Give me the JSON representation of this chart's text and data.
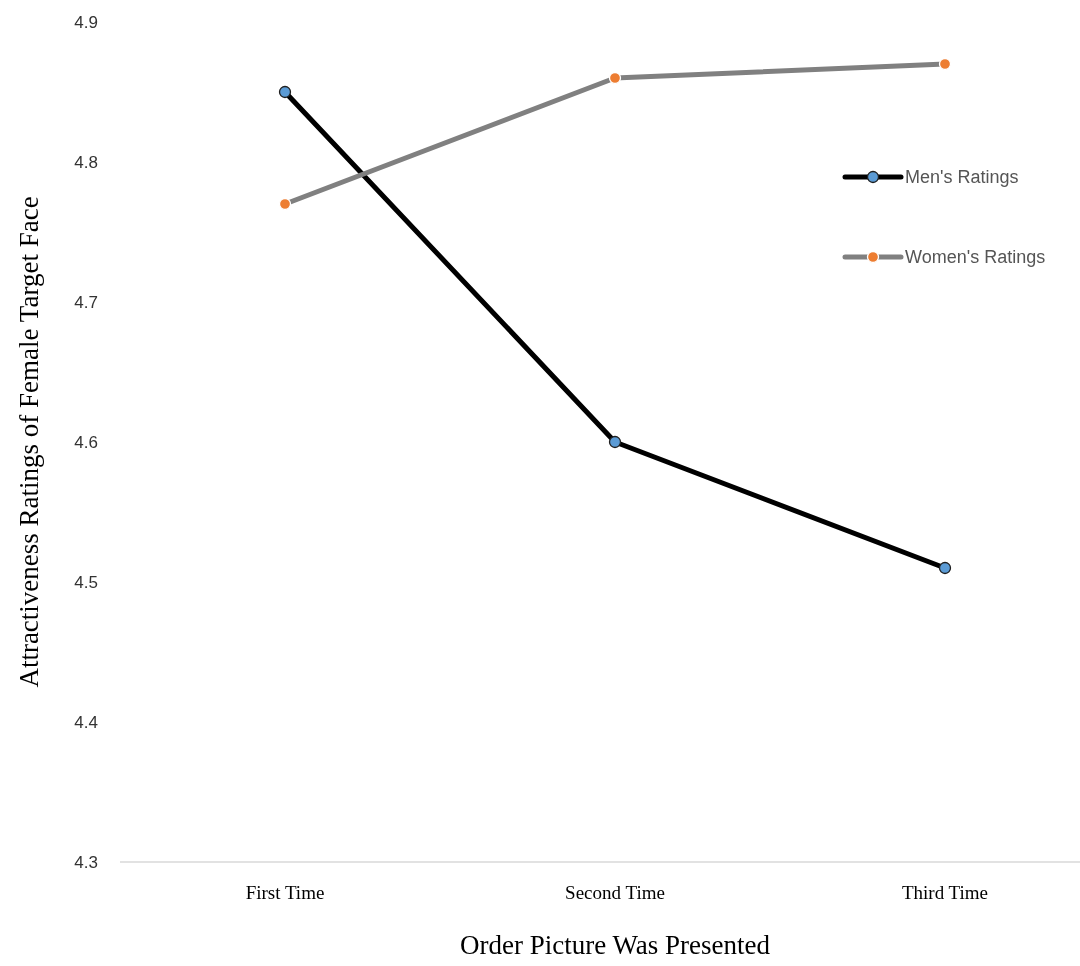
{
  "chart_data": {
    "type": "line",
    "xlabel": "Order Picture Was Presented",
    "ylabel": "Attractiveness Ratings of  Female Target Face",
    "categories": [
      "First Time",
      "Second Time",
      "Third Time"
    ],
    "series": [
      {
        "name": "Men's Ratings",
        "color": "#000000",
        "values": [
          4.85,
          4.6,
          4.51
        ]
      },
      {
        "name": "Women's Ratings",
        "color": "#808080",
        "values": [
          4.77,
          4.86,
          4.87
        ]
      }
    ],
    "ylim": [
      4.3,
      4.9
    ],
    "yticks": [
      4.3,
      4.4,
      4.5,
      4.6,
      4.7,
      4.8,
      4.9
    ],
    "marker": "circle",
    "legend": "right",
    "grid": false
  }
}
